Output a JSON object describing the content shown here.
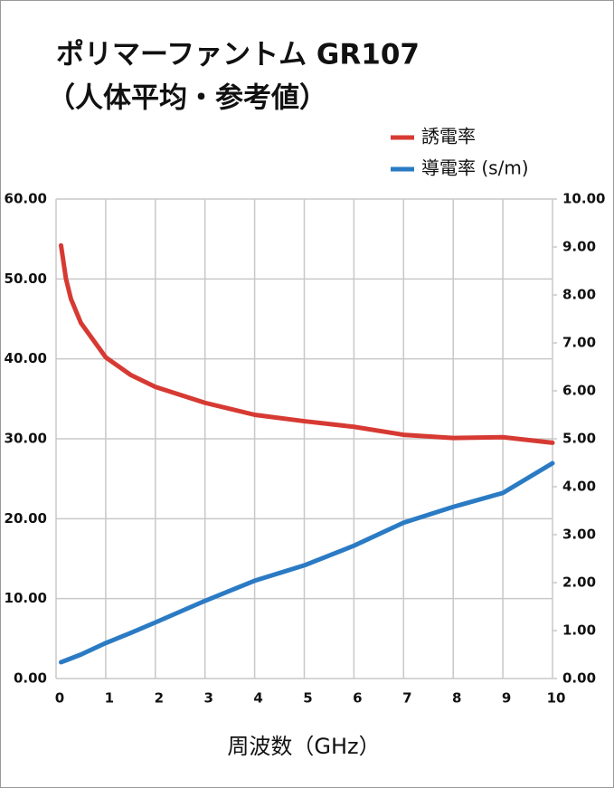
{
  "chart_data": {
    "type": "line",
    "title": [
      "ポリマーファントム GR107",
      "（人体平均・参考値）"
    ],
    "x_label": "周波数（GHz）",
    "x": [
      0.1,
      0.2,
      0.3,
      0.5,
      1,
      1.5,
      2,
      3,
      4,
      5,
      6,
      7,
      8,
      9,
      10
    ],
    "series": [
      {
        "name": "誘電率",
        "color": "#d63a33",
        "values": [
          54.2,
          50,
          47.5,
          44.5,
          40.2,
          38,
          36.5,
          34.5,
          33,
          32.2,
          31.5,
          30.5,
          30.1,
          30.2,
          29.5
        ]
      },
      {
        "name": "導電率 (s/m)",
        "color": "#2b7bc4",
        "axis": "y2",
        "values": [
          0.34,
          0.38,
          0.42,
          0.5,
          0.74,
          0.95,
          1.17,
          1.62,
          2.04,
          2.36,
          2.77,
          3.25,
          3.58,
          3.87,
          4.49
        ]
      }
    ],
    "xlim": [
      0,
      10
    ],
    "xticks": [
      0,
      1,
      2,
      3,
      4,
      5,
      6,
      7,
      8,
      9,
      10
    ],
    "ylim": [
      0,
      60
    ],
    "yticks": [
      {
        "value": 0,
        "label": "0.00"
      },
      {
        "value": 10,
        "label": "10.00"
      },
      {
        "value": 20,
        "label": "20.00"
      },
      {
        "value": 30,
        "label": "30.00"
      },
      {
        "value": 40,
        "label": "40.00"
      },
      {
        "value": 50,
        "label": "50.00"
      },
      {
        "value": 60,
        "label": "60.00"
      }
    ],
    "y2lim": [
      0,
      10
    ],
    "y2ticks": [
      {
        "value": 0,
        "label": "0.00"
      },
      {
        "value": 1,
        "label": "1.00"
      },
      {
        "value": 2,
        "label": "2.00"
      },
      {
        "value": 3,
        "label": "3.00"
      },
      {
        "value": 4,
        "label": "4.00"
      },
      {
        "value": 5,
        "label": "5.00"
      },
      {
        "value": 6,
        "label": "6.00"
      },
      {
        "value": 7,
        "label": "7.00"
      },
      {
        "value": 8,
        "label": "8.00"
      },
      {
        "value": 9,
        "label": "9.00"
      },
      {
        "value": 10,
        "label": "10.00"
      }
    ],
    "grid": true,
    "legend": "top-right"
  }
}
